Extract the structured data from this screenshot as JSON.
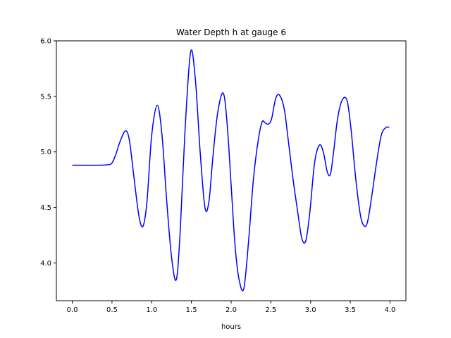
{
  "chart_data": {
    "type": "line",
    "title": "Water Depth h at gauge 6",
    "xlabel": "hours",
    "ylabel": "",
    "xlim": [
      -0.2,
      4.2
    ],
    "ylim": [
      3.66,
      6.0
    ],
    "xticks": [
      0.0,
      0.5,
      1.0,
      1.5,
      2.0,
      2.5,
      3.0,
      3.5,
      4.0
    ],
    "xtick_labels": [
      "0.0",
      "0.5",
      "1.0",
      "1.5",
      "2.0",
      "2.5",
      "3.0",
      "3.5",
      "4.0"
    ],
    "yticks": [
      4.0,
      4.5,
      5.0,
      5.5,
      6.0
    ],
    "ytick_labels": [
      "4.0",
      "4.5",
      "5.0",
      "5.5",
      "6.0"
    ],
    "grid": false,
    "series": [
      {
        "color": "#0000ff",
        "x": [
          0.0,
          0.2,
          0.35,
          0.45,
          0.5,
          0.55,
          0.6,
          0.67,
          0.72,
          0.78,
          0.84,
          0.89,
          0.94,
          1.0,
          1.07,
          1.13,
          1.19,
          1.25,
          1.31,
          1.36,
          1.42,
          1.49,
          1.55,
          1.61,
          1.67,
          1.72,
          1.77,
          1.83,
          1.9,
          1.95,
          2.0,
          2.05,
          2.1,
          2.16,
          2.22,
          2.28,
          2.34,
          2.39,
          2.43,
          2.47,
          2.51,
          2.56,
          2.61,
          2.67,
          2.72,
          2.78,
          2.84,
          2.89,
          2.94,
          2.99,
          3.05,
          3.11,
          3.16,
          3.21,
          3.25,
          3.29,
          3.34,
          3.4,
          3.46,
          3.51,
          3.57,
          3.63,
          3.68,
          3.72,
          3.77,
          3.83,
          3.89,
          3.95,
          3.99
        ],
        "y": [
          4.88,
          4.88,
          4.88,
          4.885,
          4.9,
          4.98,
          5.09,
          5.19,
          5.1,
          4.75,
          4.42,
          4.33,
          4.55,
          5.15,
          5.42,
          5.15,
          4.55,
          4.05,
          3.85,
          4.3,
          5.2,
          5.9,
          5.65,
          5.0,
          4.5,
          4.55,
          4.95,
          5.35,
          5.53,
          5.25,
          4.7,
          4.15,
          3.85,
          3.77,
          4.2,
          4.75,
          5.1,
          5.27,
          5.26,
          5.25,
          5.3,
          5.48,
          5.51,
          5.38,
          5.1,
          4.75,
          4.45,
          4.22,
          4.2,
          4.45,
          4.9,
          5.06,
          5.0,
          4.82,
          4.8,
          5.0,
          5.3,
          5.47,
          5.46,
          5.2,
          4.75,
          4.42,
          4.33,
          4.38,
          4.6,
          4.9,
          5.15,
          5.22,
          5.22
        ]
      }
    ]
  }
}
